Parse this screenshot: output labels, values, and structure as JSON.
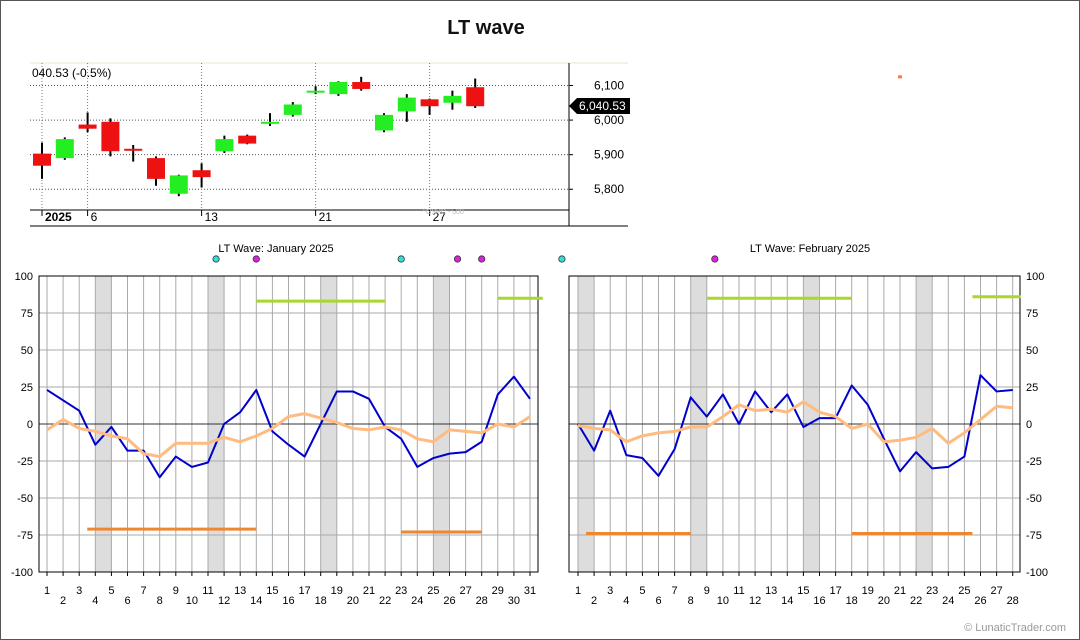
{
  "title": "LT wave",
  "credit": "© LunaticTrader.com",
  "colors": {
    "up": "#22ee22",
    "down": "#ee1111",
    "blue": "#0000cc",
    "orange_line": "#ffbb80",
    "green_bar": "#aad630",
    "orange_bar": "#ee8830",
    "weekend": "#dddddd",
    "dot_cyan": "#33dddd",
    "dot_magenta": "#dd22dd"
  },
  "chart_data": [
    {
      "type": "candlestick",
      "name": "price",
      "price_label": "040.53 (-0.5%)",
      "last_value_label": "6,040.53",
      "last_value": 6040.53,
      "ylim": [
        5740,
        6165
      ],
      "y_ticks": [
        5800,
        5900,
        6000,
        6100
      ],
      "y_tick_labels": [
        "5,800",
        "5,900",
        "6,000",
        "6,100"
      ],
      "x_labels": [
        {
          "index": 1,
          "text": "2025",
          "bold": true
        },
        {
          "index": 3,
          "text": "6"
        },
        {
          "index": 8,
          "text": "13"
        },
        {
          "index": 13,
          "text": "21"
        },
        {
          "index": 18,
          "text": "27"
        }
      ],
      "watermark": "^GSPC - 500",
      "candles": [
        {
          "o": 5903,
          "c": 5868,
          "h": 5935,
          "l": 5830
        },
        {
          "o": 5890,
          "c": 5945,
          "h": 5950,
          "l": 5885
        },
        {
          "o": 5987,
          "c": 5975,
          "h": 6022,
          "l": 5965
        },
        {
          "o": 5995,
          "c": 5910,
          "h": 6005,
          "l": 5895
        },
        {
          "o": 5917,
          "c": 5915,
          "h": 5928,
          "l": 5880
        },
        {
          "o": 5890,
          "c": 5830,
          "h": 5895,
          "l": 5810
        },
        {
          "o": 5787,
          "c": 5840,
          "h": 5842,
          "l": 5780
        },
        {
          "o": 5855,
          "c": 5835,
          "h": 5875,
          "l": 5805
        },
        {
          "o": 5910,
          "c": 5945,
          "h": 5955,
          "l": 5905
        },
        {
          "o": 5955,
          "c": 5932,
          "h": 5958,
          "l": 5930
        },
        {
          "o": 5995,
          "c": 5995,
          "h": 6020,
          "l": 5983
        },
        {
          "o": 6015,
          "c": 6045,
          "h": 6052,
          "l": 6010
        },
        {
          "o": 6080,
          "c": 6085,
          "h": 6098,
          "l": 6075
        },
        {
          "o": 6075,
          "c": 6110,
          "h": 6112,
          "l": 6070
        },
        {
          "o": 6110,
          "c": 6090,
          "h": 6125,
          "l": 6085
        },
        {
          "o": 5970,
          "c": 6015,
          "h": 6020,
          "l": 5965
        },
        {
          "o": 6025,
          "c": 6065,
          "h": 6075,
          "l": 5995
        },
        {
          "o": 6060,
          "c": 6040,
          "h": 6062,
          "l": 6015
        },
        {
          "o": 6050,
          "c": 6070,
          "h": 6085,
          "l": 6030
        },
        {
          "o": 6095,
          "c": 6040,
          "h": 6120,
          "l": 6035
        }
      ],
      "stray_marker": {
        "x_index": 27,
        "value": 6125
      }
    },
    {
      "type": "line",
      "name": "january",
      "title": "LT Wave: January 2025",
      "x_labels": [
        "1",
        "2",
        "3",
        "4",
        "5",
        "6",
        "7",
        "8",
        "9",
        "10",
        "11",
        "12",
        "13",
        "14",
        "15",
        "16",
        "17",
        "18",
        "19",
        "20",
        "21",
        "22",
        "23",
        "24",
        "25",
        "26",
        "27",
        "28",
        "29",
        "30",
        "31"
      ],
      "ylim": [
        -100,
        100
      ],
      "y_ticks": [
        -100,
        -75,
        -50,
        -25,
        0,
        25,
        50,
        75,
        100
      ],
      "weekends": [
        [
          4,
          5
        ],
        [
          11,
          12
        ],
        [
          18,
          19
        ],
        [
          25,
          26
        ]
      ],
      "series": [
        {
          "key": "blue",
          "values": [
            23,
            16,
            9,
            -14,
            -2,
            -18,
            -18,
            -36,
            -22,
            -29,
            -26,
            0,
            8,
            23,
            -5,
            -14,
            -22,
            0,
            22,
            22,
            17,
            -2,
            -10,
            -29,
            -23,
            -20,
            -19,
            -12,
            20,
            32,
            17
          ]
        },
        {
          "key": "orange",
          "values": [
            -4,
            3,
            -3,
            -5,
            -8,
            -10,
            -20,
            -22,
            -13,
            -13,
            -13,
            -9,
            -12,
            -8,
            -3,
            5,
            7,
            4,
            1,
            -3,
            -4,
            -2,
            -4,
            -10,
            -12,
            -4,
            -5,
            -6,
            0,
            -2,
            5
          ]
        }
      ],
      "bars": [
        {
          "key": "green",
          "from": 14,
          "to": 22,
          "value": 83
        },
        {
          "key": "green",
          "from": 29,
          "to": 31.8,
          "value": 85
        },
        {
          "key": "orange",
          "from": 3.5,
          "to": 14,
          "value": -71
        },
        {
          "key": "orange",
          "from": 23,
          "to": 28,
          "value": -73
        }
      ],
      "dots": [
        {
          "x": 11.5,
          "color": "cyan"
        },
        {
          "x": 14,
          "color": "magenta"
        },
        {
          "x": 23,
          "color": "cyan"
        },
        {
          "x": 26.5,
          "color": "magenta"
        },
        {
          "x": 28,
          "color": "magenta"
        }
      ]
    },
    {
      "type": "line",
      "name": "february",
      "title": "LT Wave: February 2025",
      "x_labels": [
        "1",
        "2",
        "3",
        "4",
        "5",
        "6",
        "7",
        "8",
        "9",
        "10",
        "11",
        "12",
        "13",
        "14",
        "15",
        "16",
        "17",
        "18",
        "19",
        "20",
        "21",
        "22",
        "23",
        "24",
        "25",
        "26",
        "27",
        "28"
      ],
      "ylim": [
        -100,
        100
      ],
      "y_ticks": [
        -100,
        -75,
        -50,
        -25,
        0,
        25,
        50,
        75,
        100
      ],
      "weekends": [
        [
          1,
          2
        ],
        [
          8,
          9
        ],
        [
          15,
          16
        ],
        [
          22,
          23
        ]
      ],
      "series": [
        {
          "key": "blue",
          "values": [
            0,
            -18,
            9,
            -21,
            -23,
            -35,
            -17,
            18,
            5,
            20,
            0,
            22,
            8,
            20,
            -2,
            4,
            4,
            26,
            13,
            -10,
            -32,
            -19,
            -30,
            -29,
            -22,
            33,
            22,
            23
          ]
        },
        {
          "key": "orange",
          "values": [
            -1,
            -3,
            -4,
            -12,
            -8,
            -6,
            -5,
            -2,
            -2,
            5,
            13,
            9,
            10,
            8,
            15,
            8,
            5,
            -3,
            0,
            -12,
            -11,
            -9,
            -3,
            -13,
            -6,
            3,
            12,
            11
          ]
        }
      ],
      "bars": [
        {
          "key": "orange",
          "from": 1.5,
          "to": 8,
          "value": -74
        },
        {
          "key": "green",
          "from": 9,
          "to": 18,
          "value": 85
        },
        {
          "key": "orange",
          "from": 18,
          "to": 25.5,
          "value": -74
        },
        {
          "key": "green",
          "from": 25.5,
          "to": 28.5,
          "value": 86
        }
      ],
      "dots": [
        {
          "x": 0,
          "color": "cyan"
        },
        {
          "x": 9.5,
          "color": "magenta"
        }
      ]
    }
  ]
}
